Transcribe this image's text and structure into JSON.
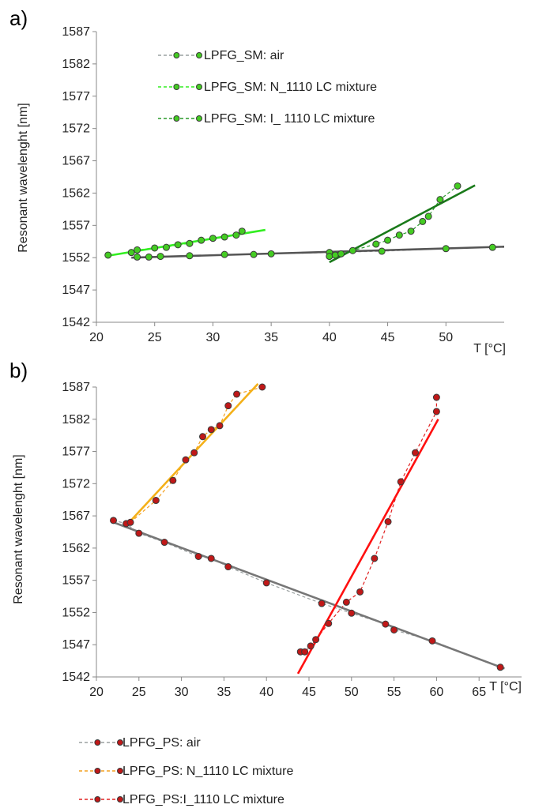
{
  "chart_data": [
    {
      "panel_label": "a)",
      "type": "scatter",
      "xlabel": "T [°C]",
      "ylabel": "Resonant wavelenght [nm]",
      "xlim": [
        20,
        55
      ],
      "ylim": [
        1542,
        1587
      ],
      "xticks": [
        20,
        25,
        30,
        35,
        40,
        45,
        50
      ],
      "yticks": [
        1542,
        1547,
        1552,
        1557,
        1562,
        1567,
        1572,
        1577,
        1582,
        1587
      ],
      "grid": false,
      "legend_position": "top-center",
      "series": [
        {
          "name": "LPFG_SM: air",
          "line_color": "#9aa0a0",
          "marker_color": "#44cc22",
          "x": [
            23.5,
            24.5,
            25.5,
            28,
            31,
            33.5,
            35,
            40,
            44.5,
            50,
            54
          ],
          "y": [
            1552.1,
            1552.1,
            1552.2,
            1552.3,
            1552.5,
            1552.5,
            1552.6,
            1552.8,
            1553.0,
            1553.4,
            1553.6
          ],
          "fit": {
            "x": [
              23,
              55
            ],
            "y": [
              1552.0,
              1553.7
            ],
            "color": "#555555"
          }
        },
        {
          "name": "LPFG_SM: N_1110 LC mixture",
          "line_color": "#33ee22",
          "marker_color": "#44cc22",
          "x": [
            21,
            23,
            23.5,
            25,
            26,
            27,
            28,
            29,
            30,
            31,
            32,
            32.5
          ],
          "y": [
            1552.4,
            1552.8,
            1553.2,
            1553.5,
            1553.6,
            1554.0,
            1554.2,
            1554.7,
            1555.0,
            1555.2,
            1555.5,
            1556.1
          ],
          "fit": {
            "x": [
              21,
              34.5
            ],
            "y": [
              1552.3,
              1556.3
            ],
            "color": "#33ee22"
          }
        },
        {
          "name": "LPFG_SM: I_ 1110 LC mixture",
          "line_color": "#2a9a2a",
          "marker_color": "#44cc22",
          "x": [
            40,
            40.5,
            41,
            42,
            44,
            45,
            46,
            47,
            48,
            48.5,
            49.5,
            51
          ],
          "y": [
            1552.2,
            1552.4,
            1552.6,
            1553.1,
            1554.1,
            1554.7,
            1555.5,
            1556.1,
            1557.6,
            1558.4,
            1561.0,
            1563.1
          ],
          "fit": {
            "x": [
              40,
              52.5
            ],
            "y": [
              1551.3,
              1563.2
            ],
            "color": "#1a7a1a"
          }
        }
      ],
      "legend": [
        {
          "text": "LPFG_SM: air",
          "style": "dashed"
        },
        {
          "text": "LPFG_SM: N_1110 LC mixture",
          "style": "dashed"
        },
        {
          "text": "LPFG_SM: I_ 1110 LC mixture",
          "style": "dashed"
        }
      ]
    },
    {
      "panel_label": "b)",
      "type": "scatter",
      "xlabel": "T [°C]",
      "ylabel": "Resonant wavelenght [nm]",
      "xlim": [
        20,
        70
      ],
      "ylim": [
        1542,
        1587
      ],
      "xticks": [
        20,
        25,
        30,
        35,
        40,
        45,
        50,
        55,
        60,
        65
      ],
      "yticks": [
        1542,
        1547,
        1552,
        1557,
        1562,
        1567,
        1572,
        1577,
        1582,
        1587
      ],
      "grid": false,
      "legend_position": "bottom",
      "series": [
        {
          "name": "LPFG_PS: air",
          "line_color": "#9aa0a0",
          "marker_color": "#c01818",
          "x": [
            22,
            23.5,
            25,
            28,
            32,
            33.5,
            35.5,
            40,
            46.5,
            50,
            54,
            55,
            59.5,
            67.5
          ],
          "y": [
            1566.3,
            1565.8,
            1564.3,
            1562.9,
            1560.7,
            1560.4,
            1559.1,
            1556.6,
            1553.4,
            1551.9,
            1550.2,
            1549.3,
            1547.6,
            1543.5
          ],
          "fit": {
            "x": [
              22,
              68
            ],
            "y": [
              1566.0,
              1543.3
            ],
            "color": "#777777"
          }
        },
        {
          "name": "LPFG_PS: N_1110 LC mixture",
          "line_color": "#f4a020",
          "marker_color": "#c01818",
          "x": [
            24,
            27,
            29,
            30.5,
            31.5,
            32.5,
            33.5,
            34.5,
            35.5,
            36.5,
            39.5
          ],
          "y": [
            1566.0,
            1569.4,
            1572.5,
            1575.7,
            1576.8,
            1579.3,
            1580.4,
            1581.0,
            1584.1,
            1585.9,
            1587.0
          ],
          "fit": {
            "x": [
              23.5,
              39
            ],
            "y": [
              1565.5,
              1587.5
            ],
            "color": "#f4b018"
          }
        },
        {
          "name": "LPFG_PS:I_1110 LC mixture",
          "line_color": "#e02020",
          "marker_color": "#c01818",
          "x": [
            44,
            44.5,
            45.2,
            45.8,
            47.3,
            49.4,
            51,
            52.7,
            54.3,
            55.8,
            57.5,
            60,
            60
          ],
          "y": [
            1545.9,
            1545.9,
            1546.8,
            1547.8,
            1550.3,
            1553.6,
            1555.2,
            1560.4,
            1566.1,
            1572.3,
            1576.8,
            1583.2,
            1585.4
          ],
          "fit": {
            "x": [
              43.7,
              60.2
            ],
            "y": [
              1542.5,
              1582.0
            ],
            "color": "#ff1010"
          }
        }
      ],
      "legend": [
        {
          "text": "LPFG_PS: air",
          "style": "dashed"
        },
        {
          "text": "LPFG_PS: N_1110 LC mixture",
          "style": "dashed"
        },
        {
          "text": "LPFG_PS:I_1110 LC mixture",
          "style": "dashed"
        }
      ]
    }
  ]
}
